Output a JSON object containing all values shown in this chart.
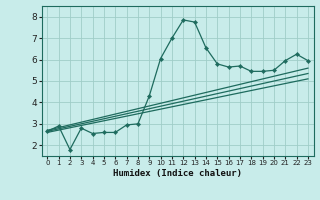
{
  "title": "",
  "xlabel": "Humidex (Indice chaleur)",
  "background_color": "#c8ecea",
  "line_color": "#1e6b5e",
  "grid_color": "#a0cdc8",
  "xlim": [
    -0.5,
    23.5
  ],
  "ylim": [
    1.5,
    8.5
  ],
  "xticks": [
    0,
    1,
    2,
    3,
    4,
    5,
    6,
    7,
    8,
    9,
    10,
    11,
    12,
    13,
    14,
    15,
    16,
    17,
    18,
    19,
    20,
    21,
    22,
    23
  ],
  "yticks": [
    2,
    3,
    4,
    5,
    6,
    7,
    8
  ],
  "curve1_x": [
    0,
    1,
    2,
    3,
    4,
    5,
    6,
    7,
    8,
    9,
    10,
    11,
    12,
    13,
    14,
    15,
    16,
    17,
    18,
    19,
    20,
    21,
    22,
    23
  ],
  "curve1_y": [
    2.65,
    2.9,
    1.8,
    2.8,
    2.55,
    2.6,
    2.6,
    2.95,
    3.0,
    4.3,
    6.05,
    7.0,
    7.85,
    7.75,
    6.55,
    5.8,
    5.65,
    5.7,
    5.45,
    5.45,
    5.5,
    5.95,
    6.25,
    5.95
  ],
  "line1_x": [
    0,
    23
  ],
  "line1_y": [
    2.6,
    5.1
  ],
  "line2_x": [
    0,
    23
  ],
  "line2_y": [
    2.65,
    5.35
  ],
  "line3_x": [
    0,
    23
  ],
  "line3_y": [
    2.7,
    5.6
  ]
}
